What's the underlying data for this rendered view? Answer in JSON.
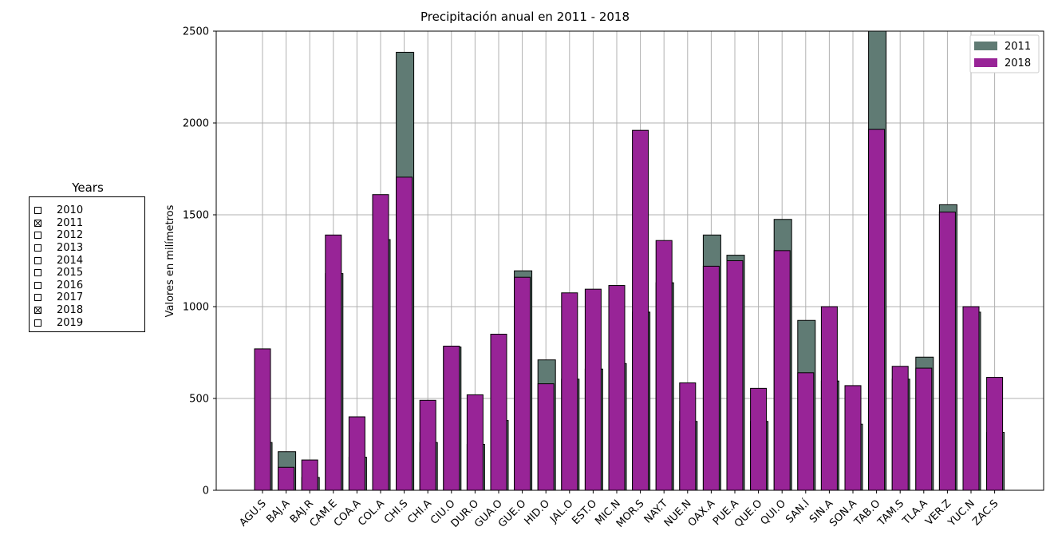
{
  "sidebar": {
    "title": "Years",
    "years": [
      {
        "label": "2010",
        "checked": false
      },
      {
        "label": "2011",
        "checked": true
      },
      {
        "label": "2012",
        "checked": false
      },
      {
        "label": "2013",
        "checked": false
      },
      {
        "label": "2014",
        "checked": false
      },
      {
        "label": "2015",
        "checked": false
      },
      {
        "label": "2016",
        "checked": false
      },
      {
        "label": "2017",
        "checked": false
      },
      {
        "label": "2018",
        "checked": true
      },
      {
        "label": "2019",
        "checked": false
      }
    ]
  },
  "chart_data": {
    "type": "bar",
    "title": "Precipitación anual en 2011 - 2018",
    "xlabel": "",
    "ylabel": "Valores en milímetros",
    "ylim": [
      0,
      2500
    ],
    "yticks": [
      0,
      500,
      1000,
      1500,
      2000,
      2500
    ],
    "grid": true,
    "legend_position": "top-right",
    "categories": [
      "AGU.S",
      "BAJ.A",
      "BAJ.R",
      "CAM.E",
      "COA.A",
      "COL.A",
      "CHI.S",
      "CHI.A",
      "CIU.O",
      "DUR.O",
      "GUA.O",
      "GUE.O",
      "HID.O",
      "JAL.O",
      "EST.O",
      "MIC.N",
      "MOR.S",
      "NAY.T",
      "NUE.N",
      "OAX.A",
      "PUE.A",
      "QUE.O",
      "QUI.O",
      "SAN.Í",
      "SIN.A",
      "SON.A",
      "TAB.O",
      "TAM.S",
      "TLA.A",
      "VER.Z",
      "YUC.N",
      "ZAC.S"
    ],
    "series": [
      {
        "name": "2011",
        "color": "#607b74",
        "values": [
          260,
          210,
          70,
          1180,
          180,
          1365,
          2385,
          260,
          780,
          250,
          380,
          1195,
          710,
          605,
          660,
          690,
          970,
          1130,
          375,
          1390,
          1280,
          375,
          1475,
          925,
          595,
          360,
          2500,
          605,
          725,
          1555,
          970,
          315
        ]
      },
      {
        "name": "2018",
        "color": "#982497",
        "values": [
          770,
          125,
          165,
          1390,
          400,
          1610,
          1705,
          490,
          785,
          520,
          850,
          1160,
          580,
          1075,
          1095,
          1115,
          1960,
          1360,
          585,
          1220,
          1250,
          555,
          1305,
          640,
          1000,
          570,
          1965,
          675,
          665,
          1515,
          1000,
          615
        ]
      }
    ]
  }
}
